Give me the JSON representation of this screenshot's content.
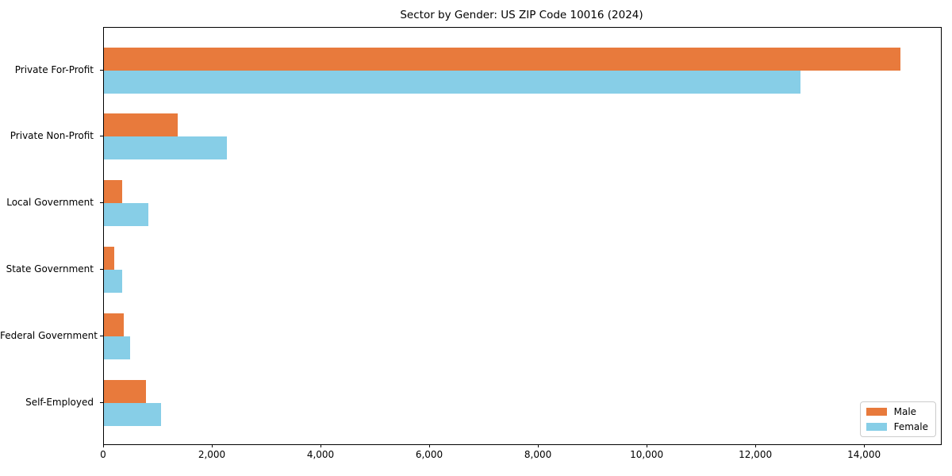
{
  "chart_data": {
    "type": "bar",
    "orientation": "horizontal",
    "title": "Sector by Gender: US ZIP Code 10016 (2024)",
    "categories": [
      "Private For-Profit",
      "Private Non-Profit",
      "Local Government",
      "State Government",
      "Federal Government",
      "Self-Employed"
    ],
    "series": [
      {
        "name": "Male",
        "color": "#e87a3c",
        "values": [
          14660,
          1350,
          340,
          185,
          370,
          780
        ]
      },
      {
        "name": "Female",
        "color": "#87cee7",
        "values": [
          12820,
          2265,
          815,
          330,
          485,
          1045
        ]
      }
    ],
    "xlabel": "",
    "ylabel": "",
    "xlim": [
      0,
      15400
    ],
    "xticks": [
      0,
      2000,
      4000,
      6000,
      8000,
      10000,
      12000,
      14000
    ],
    "xtick_labels": [
      "0",
      "2,000",
      "4,000",
      "6,000",
      "8,000",
      "10,000",
      "12,000",
      "14,000"
    ],
    "grid": false,
    "legend_position": "lower right"
  }
}
